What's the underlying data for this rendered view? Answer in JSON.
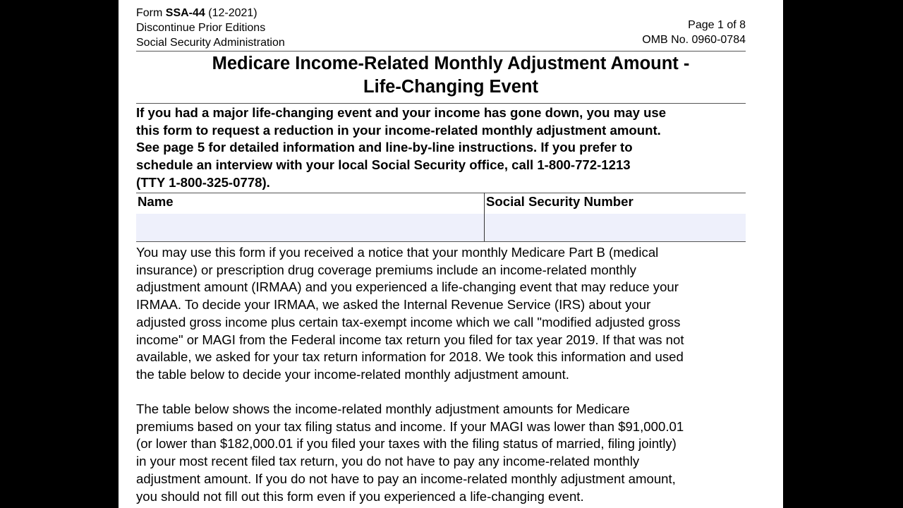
{
  "header": {
    "form_prefix": "Form ",
    "form_id": "SSA-44",
    "form_date": " (12-2021)",
    "line2": "Discontinue Prior Editions",
    "line3": "Social Security Administration",
    "page": "Page 1 of 8",
    "omb": "OMB No. 0960-0784"
  },
  "title": [
    "Medicare Income-Related Monthly Adjustment Amount -",
    "Life-Changing Event"
  ],
  "intro_lines": [
    "If you had a major life-changing event and your income has gone down, you may use",
    "this form to request a reduction in your income-related monthly adjustment amount.",
    "See page 5 for detailed information and line-by-line instructions. If you prefer to",
    "schedule an interview with your local Social Security office, call 1-800-772-1213",
    "(TTY 1-800-325-0778)."
  ],
  "fields": {
    "name_label": "Name",
    "name_value": "",
    "ssn_label": "Social Security Number",
    "ssn_value": ""
  },
  "paragraph1": [
    "You may use this form if you received a notice that your monthly Medicare Part B (medical",
    "insurance) or prescription drug coverage premiums include an income-related monthly",
    "adjustment amount (IRMAA) and you experienced a life-changing event that may reduce your",
    "IRMAA. To decide your IRMAA, we asked the Internal Revenue Service (IRS) about your",
    "adjusted gross income plus certain tax-exempt income which we call \"modified adjusted gross",
    "income\" or MAGI from the Federal income tax return you filed for tax year 2019. If that was not",
    "available, we asked for your tax return information for 2018. We took this information and used",
    "the table below to decide your income-related monthly adjustment amount."
  ],
  "paragraph2": [
    "The table below shows the income-related monthly adjustment amounts for Medicare",
    "premiums based on your tax filing status and income. If your MAGI was lower than $91,000.01",
    "(or lower than $182,000.01 if you filed your taxes with the filing status of married, filing jointly)",
    "in your most recent filed tax return, you do not have to pay any income-related monthly",
    "adjustment amount.  If you do not have to pay an income-related monthly adjustment amount,",
    "you should not fill out this form even if you experienced a life-changing event."
  ]
}
